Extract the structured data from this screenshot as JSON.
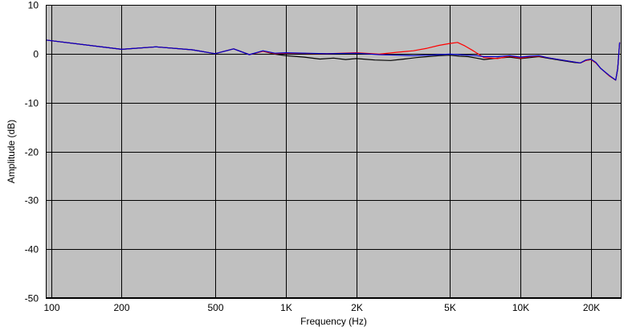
{
  "chart_data": {
    "type": "line",
    "xlabel": "Frequency (Hz)",
    "ylabel": "Amplitude (dB)",
    "x_scale": "log",
    "xlim": [
      95,
      27000
    ],
    "ylim": [
      -50,
      10
    ],
    "grid": true,
    "plot_background": "#c0c0c0",
    "x_ticks": [
      {
        "value": 100,
        "label": "100"
      },
      {
        "value": 200,
        "label": "200"
      },
      {
        "value": 500,
        "label": "500"
      },
      {
        "value": 1000,
        "label": "1K"
      },
      {
        "value": 2000,
        "label": "2K"
      },
      {
        "value": 5000,
        "label": "5K"
      },
      {
        "value": 10000,
        "label": "10K"
      },
      {
        "value": 20000,
        "label": "20K"
      }
    ],
    "y_ticks": [
      {
        "value": 10,
        "label": "10"
      },
      {
        "value": 0,
        "label": "0"
      },
      {
        "value": -10,
        "label": "-10"
      },
      {
        "value": -20,
        "label": "-20"
      },
      {
        "value": -30,
        "label": "-30"
      },
      {
        "value": -40,
        "label": "-40"
      },
      {
        "value": -50,
        "label": "-50"
      }
    ],
    "series": [
      {
        "color": "#000000",
        "points": [
          [
            95,
            2.8
          ],
          [
            200,
            0.9
          ],
          [
            280,
            1.4
          ],
          [
            400,
            0.8
          ],
          [
            500,
            0.0
          ],
          [
            600,
            1.0
          ],
          [
            700,
            -0.2
          ],
          [
            800,
            0.5
          ],
          [
            900,
            -0.1
          ],
          [
            1000,
            -0.4
          ],
          [
            1200,
            -0.7
          ],
          [
            1400,
            -1.1
          ],
          [
            1600,
            -0.9
          ],
          [
            1800,
            -1.2
          ],
          [
            2000,
            -1.0
          ],
          [
            2400,
            -1.3
          ],
          [
            2800,
            -1.4
          ],
          [
            3200,
            -1.1
          ],
          [
            3600,
            -0.8
          ],
          [
            4000,
            -0.6
          ],
          [
            4500,
            -0.4
          ],
          [
            5000,
            -0.3
          ],
          [
            5500,
            -0.5
          ],
          [
            6000,
            -0.6
          ],
          [
            6500,
            -0.9
          ],
          [
            7000,
            -1.2
          ],
          [
            8000,
            -0.9
          ],
          [
            9000,
            -0.7
          ],
          [
            10000,
            -1.0
          ],
          [
            11000,
            -0.8
          ],
          [
            12000,
            -0.6
          ],
          [
            13000,
            -0.9
          ],
          [
            15000,
            -1.4
          ],
          [
            17000,
            -1.8
          ],
          [
            18000,
            -1.9
          ],
          [
            19000,
            -1.4
          ],
          [
            20000,
            -1.2
          ],
          [
            21000,
            -1.9
          ],
          [
            22000,
            -3.0
          ],
          [
            24000,
            -4.6
          ],
          [
            25500,
            -5.4
          ],
          [
            26000,
            -3.0
          ],
          [
            26500,
            2.3
          ]
        ]
      },
      {
        "color": "#ff0000",
        "points": [
          [
            95,
            2.8
          ],
          [
            200,
            0.9
          ],
          [
            280,
            1.4
          ],
          [
            400,
            0.8
          ],
          [
            500,
            0.0
          ],
          [
            600,
            1.0
          ],
          [
            700,
            -0.2
          ],
          [
            800,
            0.5
          ],
          [
            900,
            0.0
          ],
          [
            1000,
            0.1
          ],
          [
            1500,
            0.0
          ],
          [
            2000,
            0.2
          ],
          [
            2500,
            -0.1
          ],
          [
            3000,
            0.3
          ],
          [
            3500,
            0.6
          ],
          [
            4000,
            1.1
          ],
          [
            4500,
            1.7
          ],
          [
            5000,
            2.1
          ],
          [
            5400,
            2.3
          ],
          [
            5800,
            1.6
          ],
          [
            6300,
            0.6
          ],
          [
            7000,
            -0.8
          ],
          [
            8000,
            -1.0
          ],
          [
            9000,
            -0.5
          ],
          [
            10000,
            -0.9
          ],
          [
            11000,
            -0.6
          ],
          [
            12000,
            -0.5
          ],
          [
            13000,
            -0.8
          ],
          [
            15000,
            -1.3
          ],
          [
            17000,
            -1.7
          ],
          [
            18000,
            -1.9
          ],
          [
            19000,
            -1.4
          ],
          [
            20000,
            -1.2
          ],
          [
            21000,
            -1.9
          ],
          [
            22000,
            -3.0
          ],
          [
            24000,
            -4.6
          ],
          [
            25500,
            -5.4
          ],
          [
            26000,
            -3.0
          ],
          [
            26500,
            2.3
          ]
        ]
      },
      {
        "color": "#0000cc",
        "points": [
          [
            95,
            2.8
          ],
          [
            200,
            0.9
          ],
          [
            280,
            1.4
          ],
          [
            400,
            0.8
          ],
          [
            500,
            0.0
          ],
          [
            600,
            1.0
          ],
          [
            700,
            -0.2
          ],
          [
            800,
            0.6
          ],
          [
            900,
            0.1
          ],
          [
            1000,
            0.2
          ],
          [
            1500,
            0.0
          ],
          [
            2000,
            0.1
          ],
          [
            2500,
            -0.2
          ],
          [
            3000,
            -0.3
          ],
          [
            3500,
            -0.4
          ],
          [
            4000,
            -0.3
          ],
          [
            4500,
            -0.2
          ],
          [
            5000,
            -0.1
          ],
          [
            5500,
            -0.2
          ],
          [
            6000,
            -0.3
          ],
          [
            6500,
            -0.4
          ],
          [
            7000,
            -0.6
          ],
          [
            8000,
            -0.6
          ],
          [
            9000,
            -0.4
          ],
          [
            10000,
            -0.7
          ],
          [
            11000,
            -0.5
          ],
          [
            12000,
            -0.4
          ],
          [
            13000,
            -0.8
          ],
          [
            15000,
            -1.3
          ],
          [
            17000,
            -1.7
          ],
          [
            18000,
            -1.9
          ],
          [
            19000,
            -1.3
          ],
          [
            20000,
            -1.1
          ],
          [
            21000,
            -1.8
          ],
          [
            22000,
            -3.0
          ],
          [
            24000,
            -4.5
          ],
          [
            25500,
            -5.4
          ],
          [
            26000,
            -3.0
          ],
          [
            26500,
            2.3
          ]
        ]
      }
    ]
  }
}
